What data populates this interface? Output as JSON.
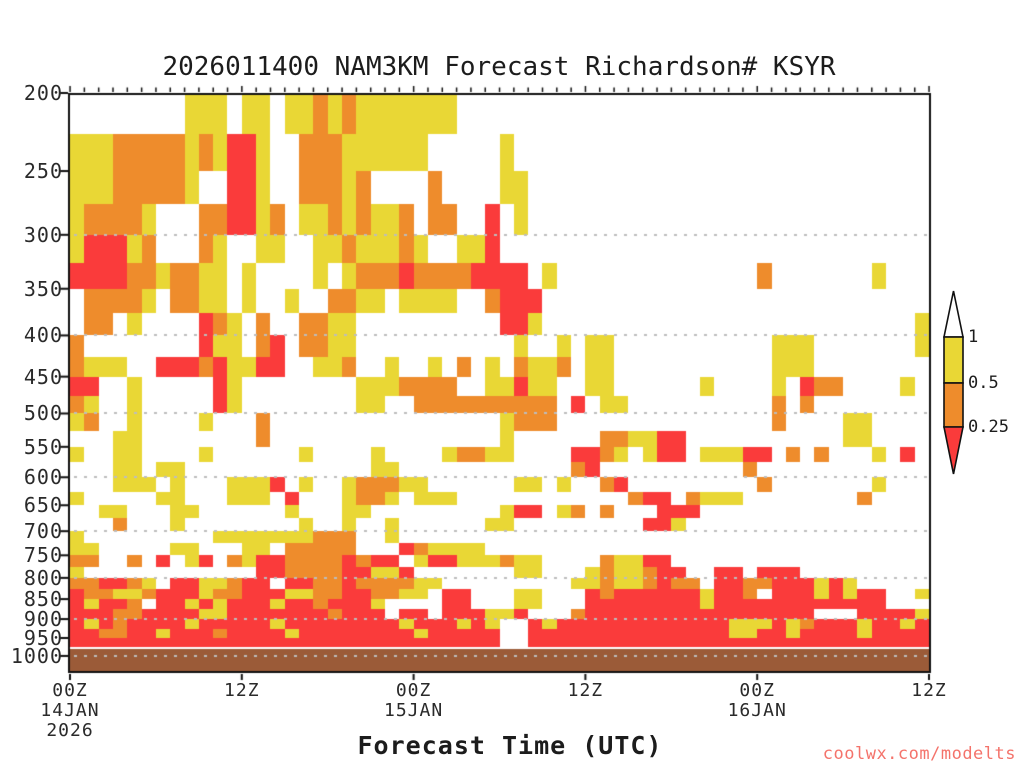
{
  "header": {
    "title": "2026011400 NAM3KM Forecast Richardson# KSYR"
  },
  "footer": {
    "watermark": "coolwx.com/modelts"
  },
  "chart_data": {
    "type": "heatmap",
    "title": "2026011400 NAM3KM Forecast Richardson# KSYR",
    "xlabel": "Forecast Time (UTC)",
    "station": "KSYR",
    "model": "NAM3KM",
    "init_time": "2026011400",
    "y_axis": {
      "scale": "log",
      "unit": "hPa",
      "range": [
        200,
        1050
      ],
      "ticks": [
        200,
        250,
        300,
        350,
        400,
        450,
        500,
        550,
        600,
        650,
        700,
        750,
        800,
        850,
        900,
        950,
        1000
      ],
      "gridlines_hpa": [
        300,
        400,
        500,
        600,
        700,
        800,
        900,
        1000
      ],
      "grid_style": "dotted"
    },
    "x_axis": {
      "hours_total": 60,
      "minor_tick_every_hours": 1,
      "major_tick_every_hours": 12,
      "ticks": [
        {
          "hour": 0,
          "lines": [
            "00Z",
            "14JAN",
            "2026"
          ]
        },
        {
          "hour": 12,
          "lines": [
            "12Z"
          ]
        },
        {
          "hour": 24,
          "lines": [
            "00Z",
            "15JAN"
          ]
        },
        {
          "hour": 36,
          "lines": [
            "12Z"
          ]
        },
        {
          "hour": 48,
          "lines": [
            "00Z",
            "16JAN"
          ]
        },
        {
          "hour": 60,
          "lines": [
            "12Z"
          ]
        }
      ]
    },
    "legend": {
      "tick_labels": [
        "1",
        "0.5",
        "0.25"
      ],
      "bins": [
        {
          "label": "> 1",
          "color_key": "white"
        },
        {
          "label": "0.5 - 1",
          "color_key": "yellow"
        },
        {
          "label": "0.25 - 0.5",
          "color_key": "orange"
        },
        {
          "label": "< 0.25",
          "color_key": "red"
        }
      ]
    },
    "colors": {
      "yellow": "#E9D735",
      "orange": "#EE8C2C",
      "red": "#FA3B3B",
      "ground": "#9B5B38",
      "grid_dots": "#BDBDBD",
      "axis": "#111111",
      "watermark": "#F4736B",
      "white": "#FFFFFF"
    },
    "ground": {
      "top_hpa": 980
    },
    "grid": {
      "hours": 60,
      "pressure_top_hpa": 200,
      "row_thickness_hpa": 25,
      "cell_codes": {
        ".": "white Ri>1",
        "y": "yellow 0.5<Ri<=1",
        "o": "orange 0.25<Ri<=0.5",
        "r": "red Ri<=0.25"
      },
      "rows": [
        "........yyy.yy.yyoyoyyyyyyy.................................",
        "yyyoooooyoyrry..oooyyyyyy.....y.............................",
        "yyyoooooy..rry..oooyo....o....yy............................",
        "yooooy...oorryo.yyoyoyyo.oo..r.y............................",
        "yrrryo...oy..yy..yyoyyyoy..yyr..............................",
        "rrrrooyooyy.y....y.yoooroooorrrr.y..............o.......y...",
        ".ooooy.ooyy.y..y..ooyy.yyyy..orrr...........................",
        ".oo.y....roy.o..ooyy..........rry..........................y",
        "o........ryy.or.ooyy...........y..y.yy...........yyy.......y",
        "oyyy..rrroryyrr..yyo..y..y.o.y.oyyo.yy...........yyy........",
        "rr..y.....ry........yyyoooo..yyryy..yy......y....y.roo....y.",
        "oy..y.....ry........yy..oooooooooo.r.yy..........o.o........",
        "yo..y....y...o................yooo...............o....yy....",
        "...yy........o................y......ooyyrr...........yy....",
        "y..yy....y......y....y....yooyy....rroy.yrr.yyyrr.o.o...y.r.",
        "...yy.yy.............yy............or..........o............",
        "...yyy.y...yyyr.y..yoooyy......yy.y..or.........o.......y...",
        "y.....yy...yyy.r...yooy.yyy............orr.oyyy........o....",
        "..yy...yy......y...yy.........yrr.yo.o...rrr................",
        "...o...y........y..y..y......yy.........rry.................",
        "y.........yyyyyyyooo..y.....................................",
        "yy.....yy...yy.ooooo...royyyy...............................",
        "oo..o.r.yr.oyrroooororr.yrryyyoyy....oyyrr..................",
        "y............rroooorryyr.......yy...yoyyorr..rr.rrr.........",
        "oorroy.rryyorr.rroorooooyy.........yyoyyoroo.rroorrryry.....",
        "rooyyorrryoorrryyoorrooyy.rr...yy...rorrrrrryrro.rrryryrr..y",
        "ryrro.rryryrrryrrorrry....rr...yy...rrrrrrrryrrrrrrrrrrrr...",
        "rrroorrrryyrrrrrrrorrr.rr.rrryyr...orrrrrrrrrrrrrrrr...rrrry",
        "ryrorrrryrrrrryrrrrrrrryrrryry..ryrrrrrrrrrrrryyyryorrryrryr",
        "rroorryrrrorrrryrrrrrrrryrrrrr..rrrrrrrrrrrrrryyrryrrrryrrrr",
        "rrrrrrrrrrrrrrrrrrrrrrrrrrrrrr..rrrrrrrrrrrrrrrrrrrrrrrrrrrr"
      ]
    }
  }
}
